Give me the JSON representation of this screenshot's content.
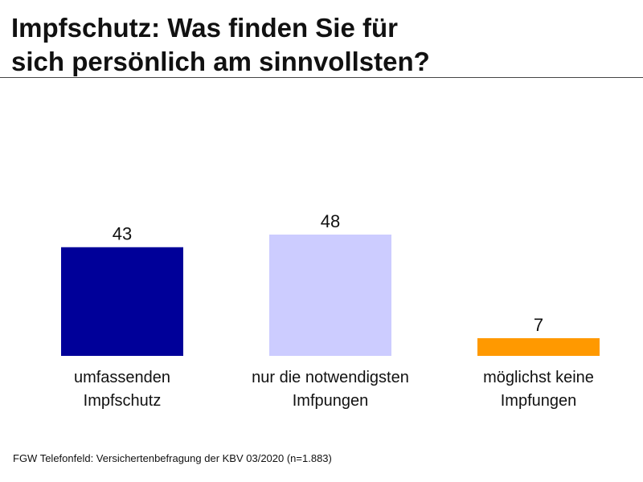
{
  "header": {
    "title_line1": "Impfschutz: Was finden Sie für",
    "title_line2": "sich persönlich am sinnvollsten?"
  },
  "footer": {
    "source": "FGW Telefonfeld: Versichertenbefragung der KBV 03/2020 (n=1.883)"
  },
  "chart_data": {
    "type": "bar",
    "title": "Impfschutz: Was finden Sie für sich persönlich am sinnvollsten?",
    "categories": [
      [
        "umfassenden",
        "Impfschutz"
      ],
      [
        "nur die notwendigsten",
        "Imfpungen"
      ],
      [
        "möglichst keine",
        "Impfungen"
      ]
    ],
    "values": [
      43,
      48,
      7
    ],
    "colors": [
      "#000099",
      "#ccccff",
      "#ff9900"
    ],
    "ylim": [
      0,
      48
    ],
    "grid": false,
    "legend": "none"
  }
}
